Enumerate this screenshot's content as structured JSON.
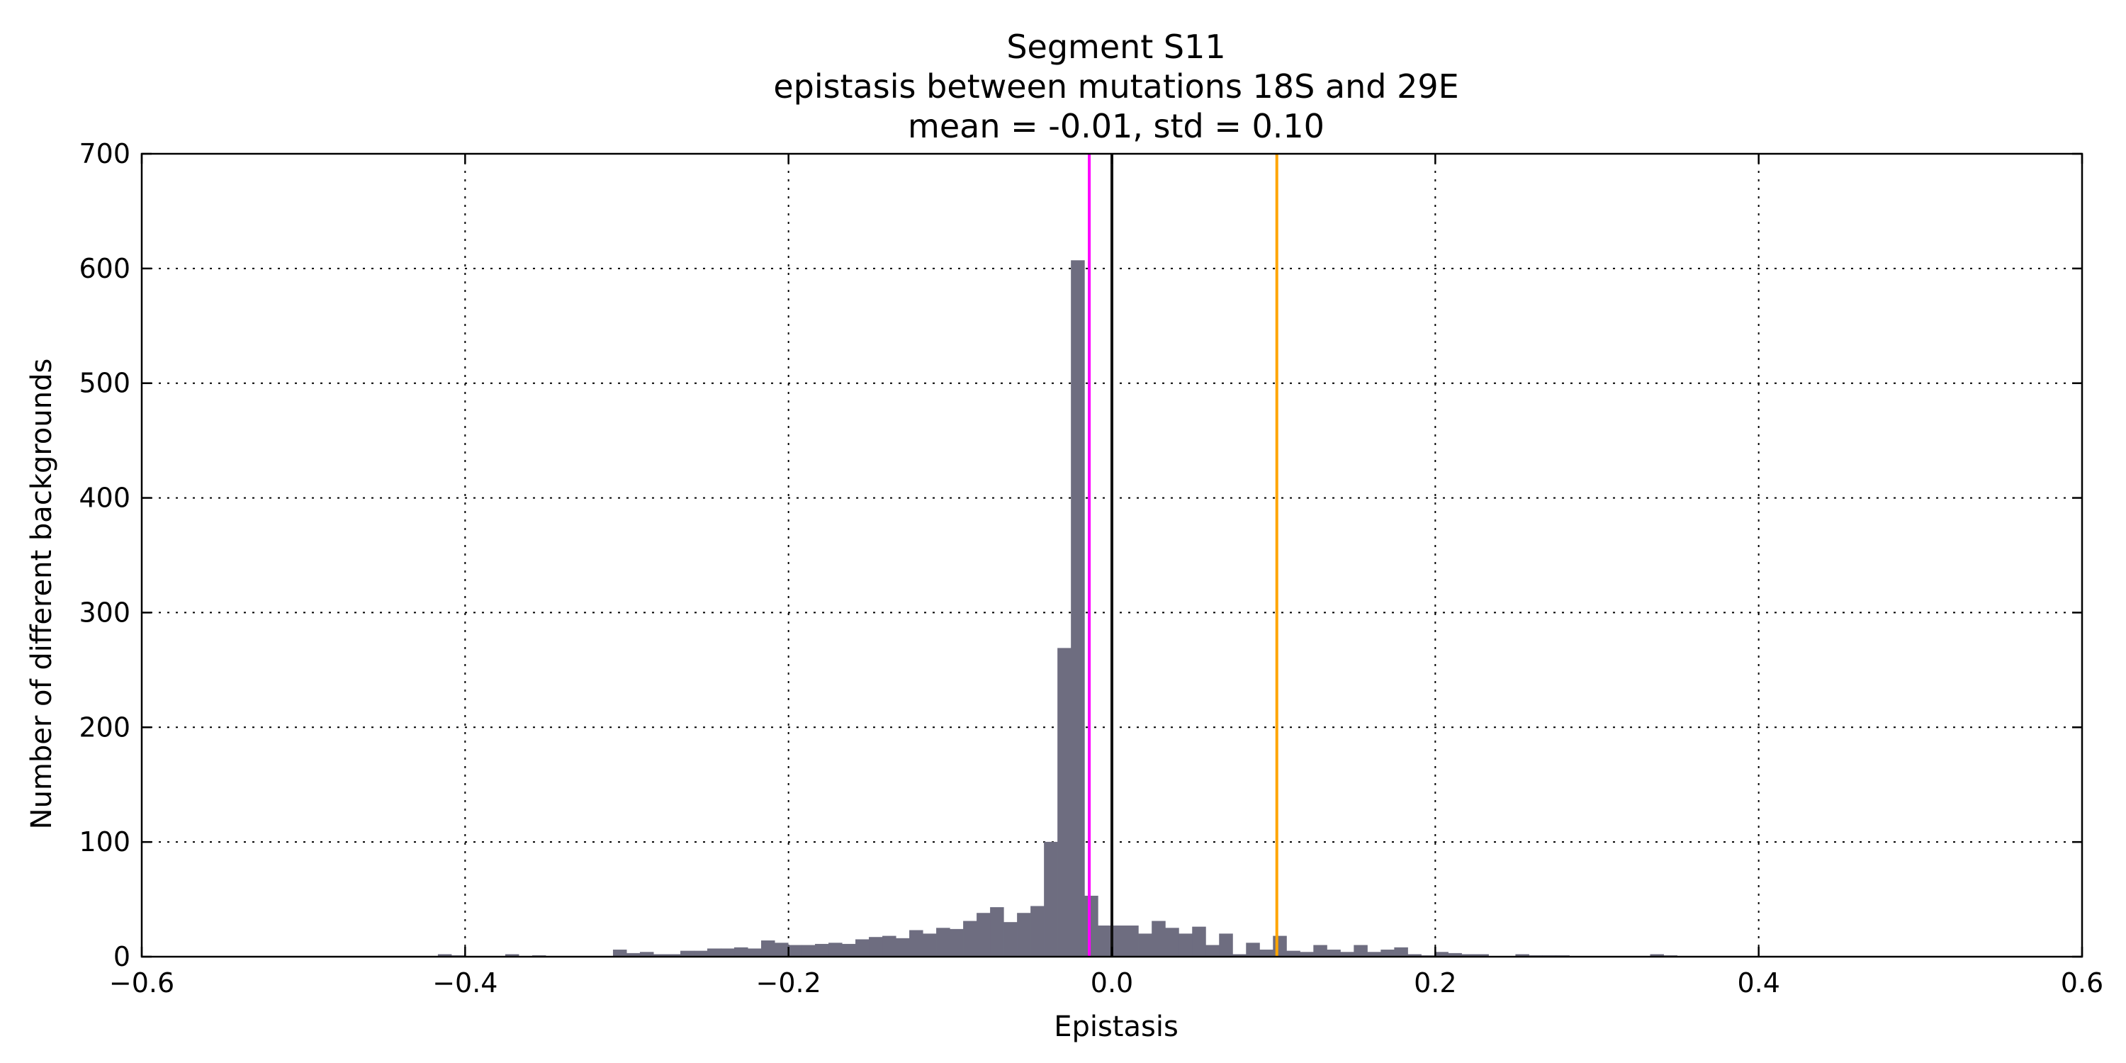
{
  "chart_data": {
    "type": "bar",
    "title_lines": [
      "Segment S11",
      "epistasis between mutations 18S and 29E",
      "mean = -0.01, std = 0.10"
    ],
    "xlabel": "Epistasis",
    "ylabel": "Number of different backgrounds",
    "xlim": [
      -0.6,
      0.6
    ],
    "ylim": [
      0,
      700
    ],
    "xticks": [
      -0.6,
      -0.4,
      -0.2,
      0.0,
      0.2,
      0.4,
      0.6
    ],
    "xtick_labels": [
      "−0.6",
      "−0.4",
      "−0.2",
      "0.0",
      "0.2",
      "0.4",
      "0.6"
    ],
    "yticks": [
      0,
      100,
      200,
      300,
      400,
      500,
      600,
      700
    ],
    "ytick_labels": [
      "0",
      "100",
      "200",
      "300",
      "400",
      "500",
      "600",
      "700"
    ],
    "grid": true,
    "bar_color": "#6e6d80",
    "bin_start": -0.6,
    "bin_width": 0.00833,
    "values": [
      0,
      0,
      0,
      0,
      0,
      0,
      0,
      0,
      0,
      0,
      0,
      0,
      0,
      0,
      0,
      0,
      0,
      0,
      0,
      0,
      0,
      0,
      2,
      1,
      0,
      0,
      0,
      2,
      0,
      1,
      0,
      0,
      0,
      0,
      0,
      6,
      3,
      4,
      2,
      2,
      5,
      5,
      7,
      7,
      8,
      7,
      14,
      12,
      10,
      10,
      11,
      12,
      11,
      15,
      17,
      18,
      16,
      23,
      20,
      25,
      24,
      31,
      38,
      43,
      30,
      38,
      44,
      100,
      269,
      607,
      53,
      27,
      27,
      27,
      20,
      31,
      25,
      20,
      26,
      10,
      20,
      2,
      12,
      6,
      18,
      5,
      4,
      10,
      6,
      4,
      10,
      4,
      6,
      8,
      2,
      1,
      4,
      3,
      2,
      2,
      0,
      0,
      2,
      1,
      1,
      1,
      0,
      0,
      0,
      0,
      0,
      0,
      2,
      1,
      0,
      0,
      0,
      0,
      0,
      0,
      0,
      0,
      0,
      0,
      0,
      0,
      0,
      0,
      0,
      0,
      0,
      0,
      0,
      0,
      0,
      0,
      0,
      0,
      0,
      0,
      0,
      0,
      0,
      0
    ],
    "vlines": [
      {
        "x": -0.014,
        "color": "#ff00ff"
      },
      {
        "x": 0.0,
        "color": "#111111"
      },
      {
        "x": 0.102,
        "color": "#ffa500"
      }
    ]
  }
}
